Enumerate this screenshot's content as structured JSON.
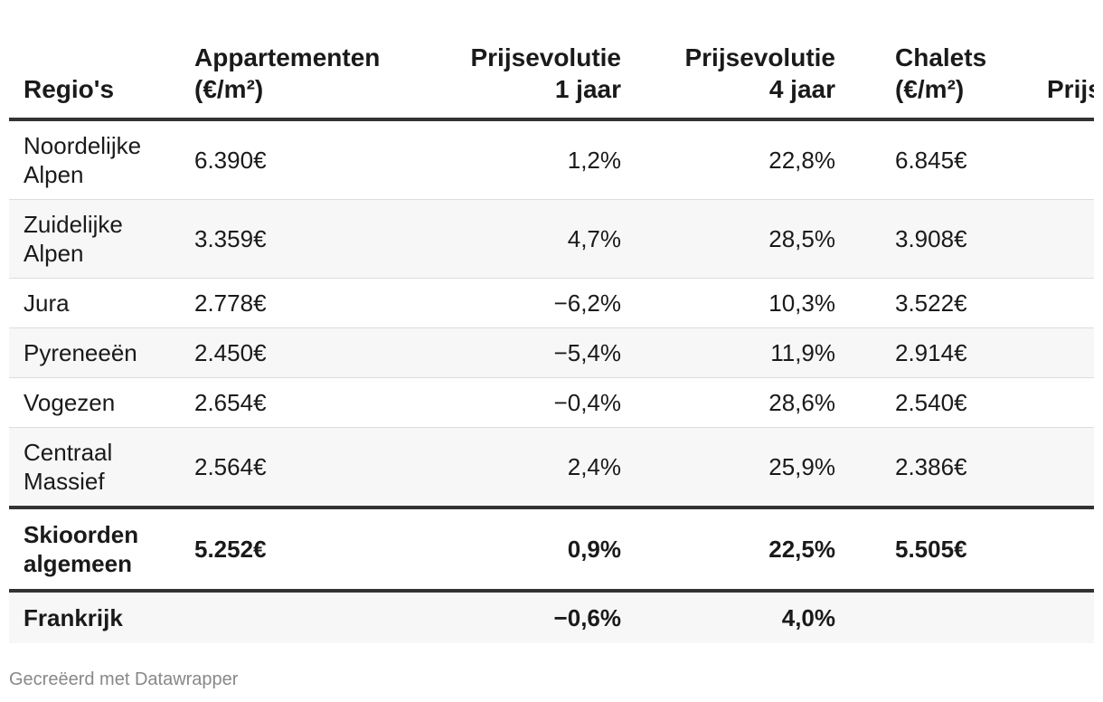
{
  "chart_data": {
    "type": "table",
    "columns": [
      "Regio's",
      "Appartementen\n(€/m²)",
      "Prijsevolutie\n1 jaar",
      "Prijsevolutie\n4 jaar",
      "Chalets\n(€/m²)",
      "Prijs"
    ],
    "rows": [
      [
        "Noordelijke Alpen",
        "6.390€",
        "1,2%",
        "22,8%",
        "6.845€",
        ""
      ],
      [
        "Zuidelijke Alpen",
        "3.359€",
        "4,7%",
        "28,5%",
        "3.908€",
        ""
      ],
      [
        "Jura",
        "2.778€",
        "−6,2%",
        "10,3%",
        "3.522€",
        ""
      ],
      [
        "Pyreneeën",
        "2.450€",
        "−5,4%",
        "11,9%",
        "2.914€",
        ""
      ],
      [
        "Vogezen",
        "2.654€",
        "−0,4%",
        "28,6%",
        "2.540€",
        ""
      ],
      [
        "Centraal Massief",
        "2.564€",
        "2,4%",
        "25,9%",
        "2.386€",
        ""
      ]
    ],
    "summary_row": [
      "Skioorden algemeen",
      "5.252€",
      "0,9%",
      "22,5%",
      "5.505€",
      ""
    ],
    "total_row": [
      "Frankrijk",
      "",
      "−0,6%",
      "4,0%",
      "",
      ""
    ]
  },
  "credit": "Gecreëerd met Datawrapper",
  "colors": {
    "text": "#1a1a1a",
    "rule": "#333333",
    "row_alt": "#f7f7f7",
    "credit": "#888888"
  }
}
